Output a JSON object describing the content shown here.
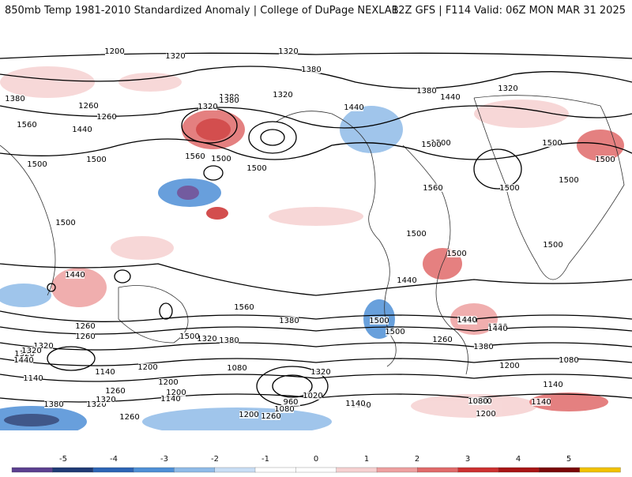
{
  "header": {
    "title_left": "850mb Temp 1981-2010 Standardized Anomaly | College of DuPage NEXLAB",
    "title_right": "12Z GFS | F114 Valid: 06Z MON MAR 31 2025"
  },
  "contour_labels": [
    "1320",
    "1320",
    "1320",
    "1380",
    "1380",
    "1380",
    "1260",
    "1320",
    "1260",
    "1380",
    "1440",
    "1320",
    "1320",
    "1380",
    "1560",
    "1440",
    "1560",
    "1500",
    "1500",
    "1500",
    "1500",
    "1440",
    "1500",
    "1500",
    "1500",
    "1560",
    "1500",
    "1500",
    "1500",
    "1440",
    "1500",
    "1500",
    "1500",
    "1500",
    "1440",
    "1560",
    "1500",
    "1380",
    "1260",
    "1440",
    "1320",
    "1380",
    "1260",
    "1500",
    "1500",
    "1500",
    "1440",
    "1260",
    "1380",
    "1320",
    "1320",
    "1200",
    "1320",
    "1140",
    "1080",
    "1200",
    "1200",
    "1140",
    "1140",
    "1080",
    "1260",
    "1380",
    "1080",
    "1320",
    "1140",
    "1200",
    "960",
    "1020",
    "1080",
    "1140",
    "1080",
    "1140",
    "1200",
    "1200",
    "1260",
    "1260",
    "1380",
    "1320",
    "1440",
    "1320",
    "1140",
    "1200"
  ],
  "colorbar": {
    "ticks": [
      "-5",
      "-4",
      "-3",
      "-2",
      "-1",
      "0",
      "1",
      "2",
      "3",
      "4",
      "5"
    ],
    "colors": [
      "#5b3f8f",
      "#1f3a75",
      "#2c64b5",
      "#4e8fd6",
      "#8fbbe8",
      "#c9def5",
      "#ffffff",
      "#ffffff",
      "#f6d1d1",
      "#eea0a0",
      "#e06a6a",
      "#cc3030",
      "#a81515",
      "#7a0505",
      "#f2c200"
    ]
  }
}
